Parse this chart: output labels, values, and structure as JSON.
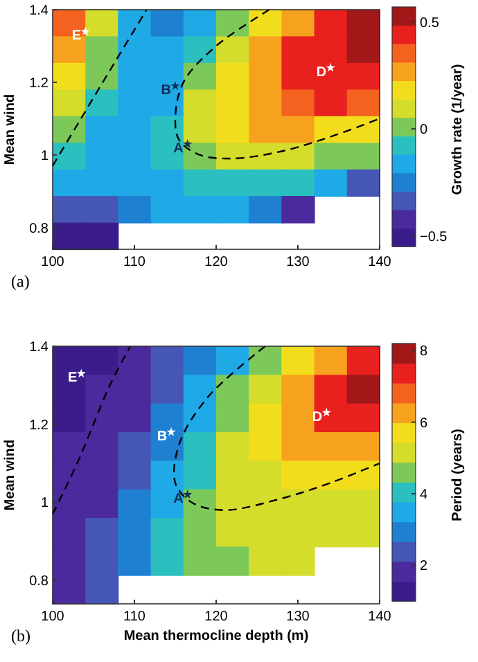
{
  "chart_data": [
    {
      "type": "heatmap",
      "ylabel": "Mean wind",
      "clabel": "Growth rate (1/year)",
      "xlim": [
        100,
        140
      ],
      "ylim": [
        0.74,
        1.4
      ],
      "xticks": [
        100,
        110,
        120,
        130,
        140
      ],
      "yticks": [
        0.8,
        1,
        1.2,
        1.4
      ],
      "clim": [
        -0.55,
        0.57
      ],
      "cticks": [
        {
          "value": -0.5,
          "label": "−0.5"
        },
        0,
        0.5
      ],
      "colors": [
        "#3a1d8a",
        "#4a2a9c",
        "#4656b4",
        "#1f80d2",
        "#1fa9e6",
        "#2bbfbf",
        "#7cc95a",
        "#d4dc2c",
        "#f2dd1c",
        "#f7a21e",
        "#f4621f",
        "#e8201e",
        "#a01818"
      ],
      "cells": [
        [
          0.35,
          0.1,
          -0.15,
          -0.25,
          -0.15,
          0,
          0.15,
          0.3,
          0.45,
          0.55
        ],
        [
          0.3,
          0.05,
          -0.15,
          -0.2,
          -0.1,
          0.1,
          0.25,
          0.4,
          0.45,
          0.5
        ],
        [
          0.2,
          0,
          -0.15,
          -0.15,
          -0.02,
          0.15,
          0.3,
          0.4,
          0.45,
          0.45
        ],
        [
          0.1,
          -0.1,
          -0.15,
          -0.12,
          0.08,
          0.2,
          0.3,
          0.38,
          0.4,
          0.35
        ],
        [
          0,
          -0.15,
          -0.15,
          -0.1,
          0.08,
          0.2,
          0.25,
          0.25,
          0.2,
          0.15
        ],
        [
          -0.1,
          -0.15,
          -0.15,
          -0.08,
          0.02,
          0.1,
          0.12,
          0.1,
          0.05,
          0
        ],
        [
          -0.2,
          -0.2,
          -0.15,
          -0.12,
          -0.1,
          -0.05,
          -0.08,
          -0.1,
          -0.12,
          -0.3
        ],
        [
          -0.35,
          -0.3,
          -0.25,
          -0.2,
          -0.2,
          -0.2,
          -0.25,
          -0.4,
          null,
          null
        ],
        [
          -0.5,
          -0.5,
          null,
          null,
          null,
          null,
          null,
          null,
          null,
          null
        ]
      ],
      "series": [
        {
          "type": "line",
          "color": "#000000",
          "line_style": "dashed",
          "x": [
            100,
            104,
            108,
            111.5
          ],
          "values": [
            0.97,
            1.12,
            1.27,
            1.4
          ]
        },
        {
          "type": "line",
          "color": "#000000",
          "line_style": "dashed",
          "x": [
            126.5,
            120,
            116,
            115,
            115.5,
            118,
            122,
            128,
            134,
            140
          ],
          "values": [
            1.4,
            1.3,
            1.2,
            1.1,
            1.04,
            1.0,
            0.99,
            1.01,
            1.05,
            1.1
          ]
        },
        {
          "type": "scatter",
          "name": "E",
          "color": "#ffffff",
          "marker": "star",
          "x": [
            104
          ],
          "values": [
            1.34
          ]
        },
        {
          "type": "scatter",
          "name": "B",
          "color": "#10305a",
          "marker": "star",
          "x": [
            115
          ],
          "values": [
            1.19
          ]
        },
        {
          "type": "scatter",
          "name": "A",
          "color": "#10305a",
          "marker": "star",
          "x": [
            116.5
          ],
          "values": [
            1.03
          ]
        },
        {
          "type": "scatter",
          "name": "D",
          "color": "#ffffff",
          "marker": "star",
          "x": [
            134
          ],
          "values": [
            1.24
          ]
        }
      ],
      "annotations": [
        "(a)"
      ]
    },
    {
      "type": "heatmap",
      "xlabel": "Mean thermocline depth (m)",
      "ylabel": "Mean wind",
      "clabel": "Period (years)",
      "xlim": [
        100,
        140
      ],
      "ylim": [
        0.74,
        1.4
      ],
      "xticks": [
        100,
        110,
        120,
        130,
        140
      ],
      "yticks": [
        0.8,
        1,
        1.2,
        1.4
      ],
      "clim": [
        1,
        8.2
      ],
      "cticks": [
        2,
        4,
        6,
        8
      ],
      "colors": [
        "#3a1d8a",
        "#4a2a9c",
        "#4656b4",
        "#1f80d2",
        "#1fa9e6",
        "#2bbfbf",
        "#7cc95a",
        "#d4dc2c",
        "#f2dd1c",
        "#f7a21e",
        "#f4621f",
        "#e8201e",
        "#a01818"
      ],
      "cells": [
        [
          1.5,
          1.5,
          1.8,
          2.2,
          2.8,
          3.5,
          4.5,
          5.5,
          6.5,
          7.5
        ],
        [
          1.5,
          1.6,
          2,
          2.5,
          3.3,
          4.5,
          5.3,
          6.3,
          7.3,
          8
        ],
        [
          1.5,
          1.7,
          2.1,
          2.7,
          3.7,
          4.8,
          5.5,
          6.5,
          7.2,
          7.5
        ],
        [
          1.6,
          1.8,
          2.3,
          3,
          4,
          5,
          5.5,
          6,
          6.5,
          6.5
        ],
        [
          1.6,
          1.9,
          2.5,
          3.3,
          4.3,
          5.2,
          5.4,
          5.6,
          5.8,
          5.8
        ],
        [
          1.7,
          2,
          2.7,
          3.5,
          4.5,
          5.2,
          5.3,
          5.4,
          5.4,
          5.4
        ],
        [
          1.8,
          2.2,
          3,
          3.8,
          4.6,
          5,
          5.3,
          5.3,
          5.3,
          5.3
        ],
        [
          1.9,
          2.4,
          3.2,
          4,
          4.6,
          4.8,
          5.3,
          5.3,
          null,
          null
        ],
        [
          2,
          2.5,
          null,
          null,
          null,
          null,
          null,
          null,
          null,
          null
        ]
      ],
      "series": [
        {
          "type": "line",
          "color": "#000000",
          "line_style": "dashed",
          "x": [
            100,
            103,
            107,
            109.5
          ],
          "values": [
            0.97,
            1.1,
            1.3,
            1.4
          ]
        },
        {
          "type": "line",
          "color": "#000000",
          "line_style": "dashed",
          "x": [
            126,
            119,
            115.5,
            115,
            117,
            121,
            128,
            134,
            140
          ],
          "values": [
            1.4,
            1.27,
            1.15,
            1.05,
            1.0,
            0.98,
            1.01,
            1.05,
            1.1
          ]
        },
        {
          "type": "scatter",
          "name": "E",
          "color": "#ffffff",
          "marker": "star",
          "x": [
            103.5
          ],
          "values": [
            1.33
          ]
        },
        {
          "type": "scatter",
          "name": "B",
          "color": "#ffffff",
          "marker": "star",
          "x": [
            114.5
          ],
          "values": [
            1.18
          ]
        },
        {
          "type": "scatter",
          "name": "A",
          "color": "#10305a",
          "marker": "star",
          "x": [
            116.5
          ],
          "values": [
            1.02
          ]
        },
        {
          "type": "scatter",
          "name": "D",
          "color": "#ffffff",
          "marker": "star",
          "x": [
            133.5
          ],
          "values": [
            1.23
          ]
        }
      ],
      "annotations": [
        "(b)"
      ]
    }
  ]
}
